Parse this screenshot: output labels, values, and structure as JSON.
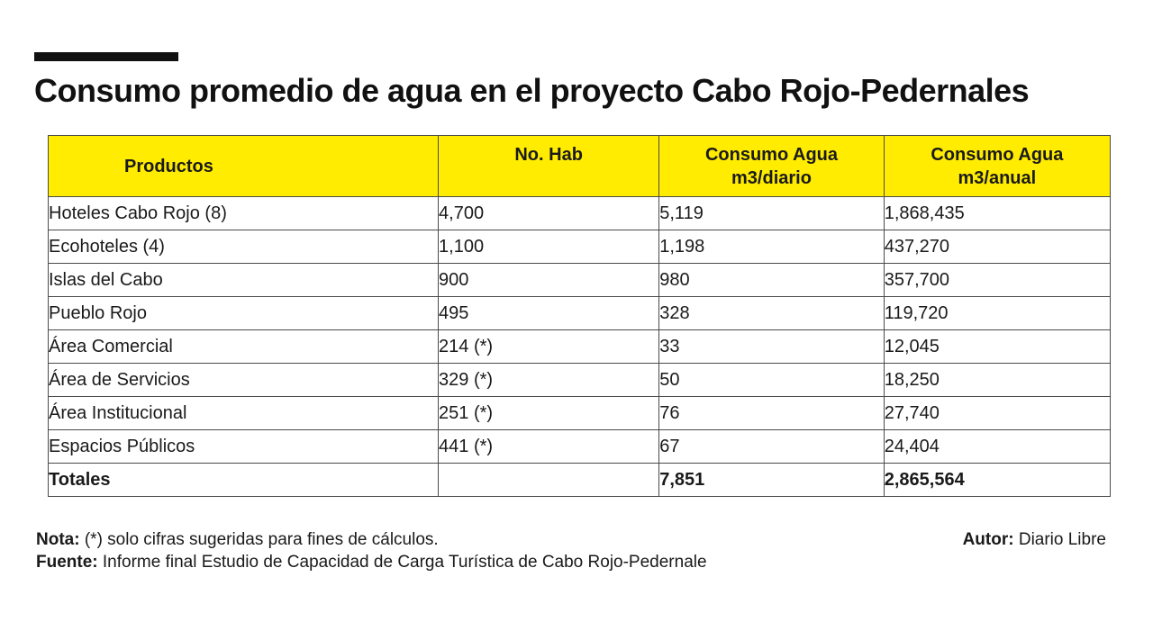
{
  "title": "Consumo promedio de agua en el proyecto Cabo Rojo-Pedernales",
  "table": {
    "headers": {
      "productos": "Productos",
      "hab": "No. Hab",
      "diario_line1": "Consumo Agua",
      "diario_line2": "m3/diario",
      "anual_line1": "Consumo Agua",
      "anual_line2": "m3/anual"
    },
    "rows": [
      {
        "producto": "Hoteles Cabo Rojo (8)",
        "hab": "4,700",
        "diario": "5,119",
        "anual": "1,868,435"
      },
      {
        "producto": "Ecohoteles (4)",
        "hab": "1,100",
        "diario": "1,198",
        "anual": "437,270"
      },
      {
        "producto": "Islas del Cabo",
        "hab": "900",
        "diario": "980",
        "anual": "357,700"
      },
      {
        "producto": "Pueblo Rojo",
        "hab": "495",
        "diario": "328",
        "anual": "119,720"
      },
      {
        "producto": "Área Comercial",
        "hab": "214 (*)",
        "diario": "33",
        "anual": "12,045"
      },
      {
        "producto": "Área de Servicios",
        "hab": "329 (*)",
        "diario": "50",
        "anual": "18,250"
      },
      {
        "producto": "Área Institucional",
        "hab": "251 (*)",
        "diario": "76",
        "anual": "27,740"
      },
      {
        "producto": "Espacios Públicos",
        "hab": "441 (*)",
        "diario": "67",
        "anual": "24,404"
      }
    ],
    "totals": {
      "label": "Totales",
      "hab": "",
      "diario": "7,851",
      "anual": "2,865,564"
    }
  },
  "notes": {
    "nota_label": "Nota:",
    "nota_text": " (*) solo cifras sugeridas para fines de cálculos.",
    "fuente_label": "Fuente:",
    "fuente_text": " Informe final Estudio de Capacidad de Carga Turística de Cabo Rojo-Pedernale"
  },
  "author": {
    "label": "Autor:",
    "text": " Diario Libre"
  },
  "colors": {
    "header_bg": "#ffec00",
    "text": "#1a1a1a",
    "rule": "#111111"
  }
}
